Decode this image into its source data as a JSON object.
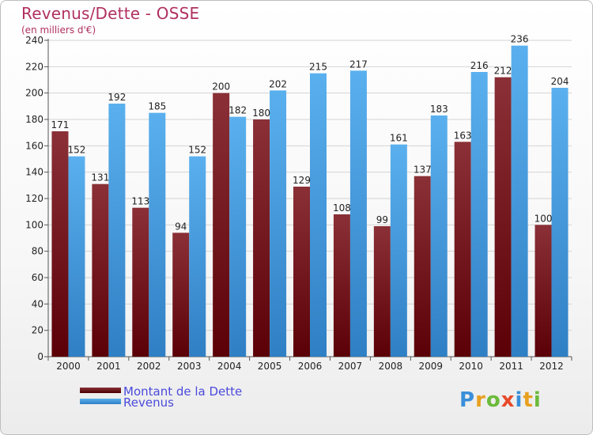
{
  "header": {
    "title": "Revenus/Dette - OSSE",
    "subtitle": "(en milliers d'€)"
  },
  "legend": {
    "items": [
      {
        "label": "Montant de la Dette",
        "color": "#6b0f14"
      },
      {
        "label": "Revenus",
        "color": "#4aa3e6"
      }
    ]
  },
  "logo": {
    "text": "Proxiti"
  },
  "chart_data": {
    "type": "bar",
    "categories": [
      "2000",
      "2001",
      "2002",
      "2003",
      "2004",
      "2005",
      "2006",
      "2007",
      "2008",
      "2009",
      "2010",
      "2011",
      "2012"
    ],
    "series": [
      {
        "name": "Montant de la Dette",
        "color": "#7a1c22",
        "values": [
          171,
          131,
          113,
          94,
          200,
          180,
          129,
          108,
          99,
          137,
          163,
          212,
          100
        ]
      },
      {
        "name": "Revenus",
        "color": "#4aa3e6",
        "values": [
          152,
          192,
          185,
          152,
          182,
          202,
          215,
          217,
          161,
          183,
          216,
          236,
          204
        ]
      }
    ],
    "title": "Revenus/Dette - OSSE",
    "subtitle": "(en milliers d'€)",
    "ylim": [
      0,
      240
    ],
    "yticks": [
      0,
      20,
      40,
      60,
      80,
      100,
      120,
      140,
      160,
      180,
      200,
      220,
      240
    ],
    "grid": true,
    "legend_position": "bottom-left"
  }
}
